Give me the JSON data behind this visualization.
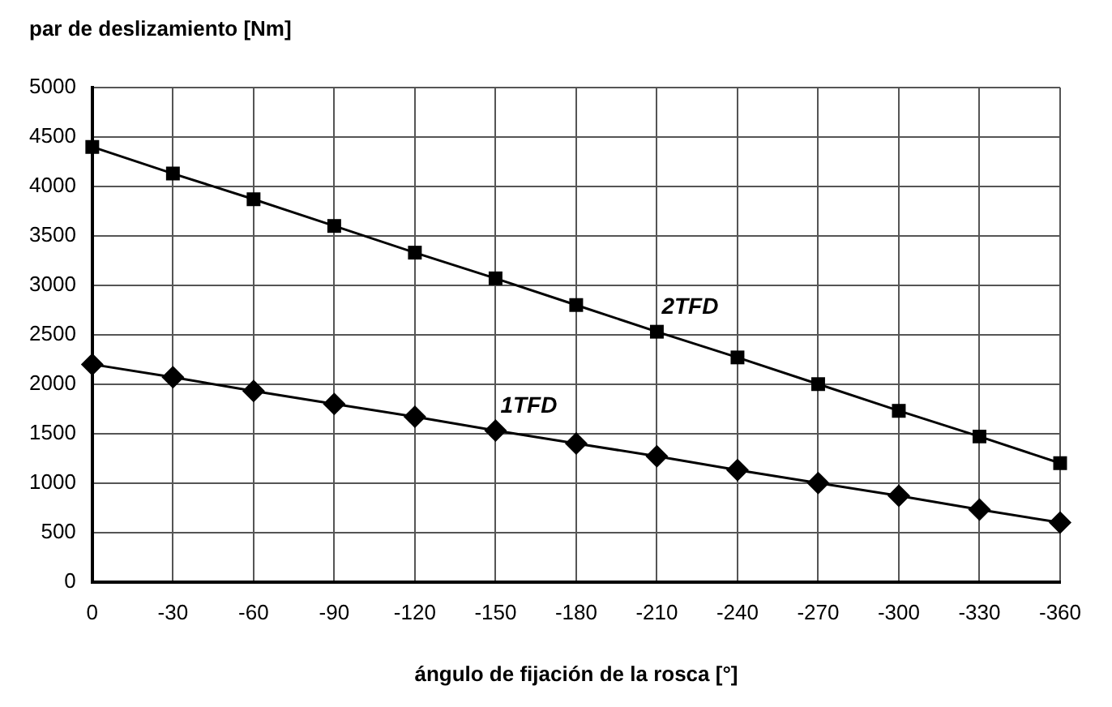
{
  "chart_data": {
    "type": "line",
    "xlabel": "ángulo de fijación de la rosca [°]",
    "ylabel": "par de deslizamiento [Nm]",
    "categories": [
      "0",
      "-30",
      "-60",
      "-90",
      "-120",
      "-150",
      "-180",
      "-210",
      "-240",
      "-270",
      "-300",
      "-330",
      "-360"
    ],
    "series": [
      {
        "name": "2TFD",
        "color": "#000000",
        "marker": "square",
        "values": [
          4400,
          4130,
          3870,
          3600,
          3330,
          3070,
          2800,
          2530,
          2270,
          2000,
          1730,
          1470,
          1200
        ]
      },
      {
        "name": "1TFD",
        "color": "#000000",
        "marker": "diamond",
        "values": [
          2200,
          2070,
          1930,
          1800,
          1670,
          1530,
          1400,
          1270,
          1130,
          1000,
          870,
          730,
          600
        ]
      }
    ],
    "ylim": [
      0,
      5000
    ],
    "yticks": [
      0,
      500,
      1000,
      1500,
      2000,
      2500,
      3000,
      3500,
      4000,
      4500,
      5000
    ],
    "grid": true,
    "legend": false,
    "line_style": "solid"
  }
}
